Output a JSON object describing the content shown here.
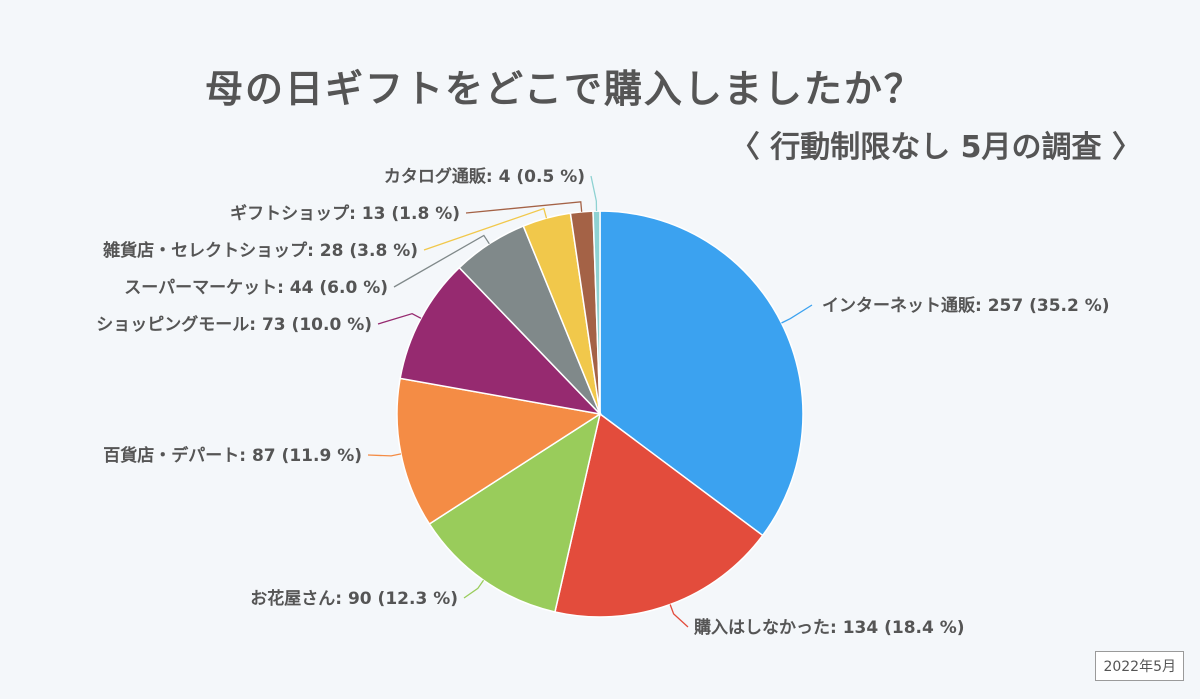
{
  "chart_data": {
    "type": "pie",
    "title": "母の日ギフトをどこで購入しましたか？",
    "subtitle": "〈 行動制限なし 5月の調査 〉",
    "date_badge": "2022年5月",
    "slices": [
      {
        "label": "インターネット通販",
        "value": 257,
        "percent": "35.2 %",
        "color": "#3ba2f0"
      },
      {
        "label": "購入はしなかった",
        "value": 134,
        "percent": "18.4 %",
        "color": "#e34c3c"
      },
      {
        "label": "お花屋さん",
        "value": 90,
        "percent": "12.3 %",
        "color": "#99cc5b"
      },
      {
        "label": "百貨店・デパート",
        "value": 87,
        "percent": "11.9 %",
        "color": "#f48c45"
      },
      {
        "label": "ショッピングモール",
        "value": 73,
        "percent": "10.0 %",
        "color": "#962a70"
      },
      {
        "label": "スーパーマーケット",
        "value": 44,
        "percent": "6.0 %",
        "color": "#80898a"
      },
      {
        "label": "雑貨店・セレクトショップ",
        "value": 28,
        "percent": "3.8 %",
        "color": "#f1c84b"
      },
      {
        "label": "ギフトショップ",
        "value": 13,
        "percent": "1.8 %",
        "color": "#a46246"
      },
      {
        "label": "カタログ通販",
        "value": 4,
        "percent": "0.5 %",
        "color": "#8ed2d2"
      }
    ]
  }
}
